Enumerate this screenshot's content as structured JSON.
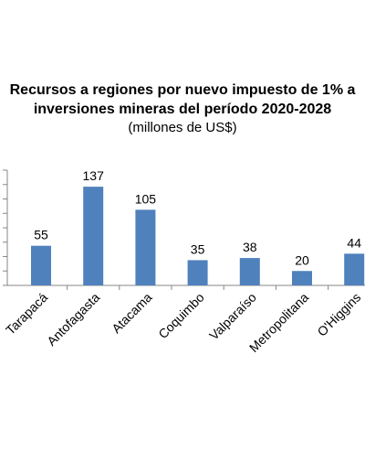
{
  "chart_data": {
    "type": "bar",
    "title_line1": "Recursos a regiones por nuevo impuesto de 1% a",
    "title_line2": "inversiones mineras del período 2020-2028",
    "subtitle": "(millones de US$)",
    "categories": [
      "Tarapacá",
      "Antofagasta",
      "Atacama",
      "Coquimbo",
      "Valparaíso",
      "Metropolitana",
      "O'Higgins"
    ],
    "values": [
      55,
      137,
      105,
      35,
      38,
      20,
      44
    ],
    "data_labels": [
      "55",
      "137",
      "105",
      "35",
      "38",
      "20",
      "44"
    ],
    "ylim": [
      0,
      160
    ],
    "y_major": 20,
    "grid": false,
    "bar_color": "#4F81BD",
    "axis_color": "#878787"
  }
}
